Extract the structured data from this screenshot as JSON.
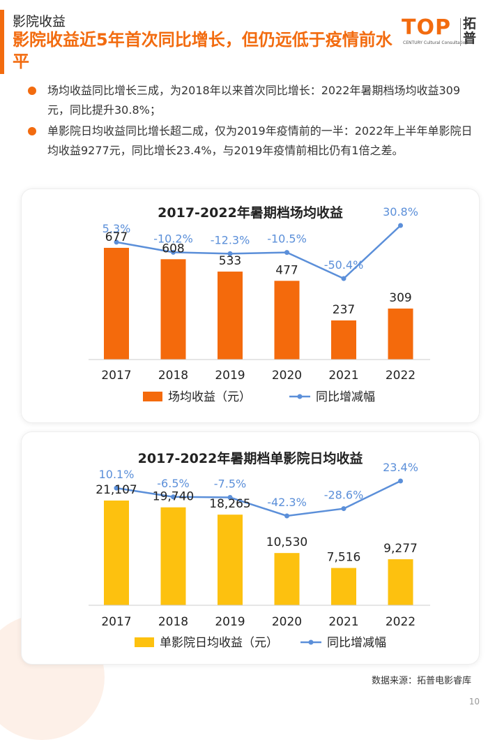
{
  "header": {
    "section_label": "影院收益",
    "headline": "影院收益近5年首次同比增长，但仍远低于疫情前水平"
  },
  "logo": {
    "text": "TOP",
    "sub": "CENTURY Cultural Consultation",
    "cn": "拓普"
  },
  "bullets": [
    {
      "bold": "场均收益同比增长三成，为2018年以来首次同比增长：",
      "text": "2022年暑期档场均收益309元，同比提升30.8%；"
    },
    {
      "bold": "单影院日均收益同比增长超二成，仅为2019年疫情前的一半：",
      "text": "2022年上半年单影院日均收益9277元，同比增长23.4%，与2019年疫情前相比仍有1倍之差。"
    }
  ],
  "colors": {
    "accent": "#f26b0f",
    "bar1": "#f46a0c",
    "bar2": "#fdc10f",
    "line": "#5b8fd9"
  },
  "chart_data": [
    {
      "type": "bar",
      "title": "2017-2022年暑期档场均收益",
      "categories": [
        "2017",
        "2018",
        "2019",
        "2020",
        "2021",
        "2022"
      ],
      "series": [
        {
          "name": "场均收益（元）",
          "values": [
            677,
            608,
            533,
            477,
            237,
            309
          ],
          "labels": [
            "677",
            "608",
            "533",
            "477",
            "237",
            "309"
          ]
        },
        {
          "name": "同比增减幅",
          "type": "line",
          "values": [
            5.3,
            -10.2,
            -12.3,
            -10.5,
            -50.4,
            30.8
          ],
          "labels": [
            "5.3%",
            "-10.2%",
            "-12.3%",
            "-10.5%",
            "-50.4%",
            "30.8%"
          ]
        }
      ],
      "legend": "bottom"
    },
    {
      "type": "bar",
      "title": "2017-2022年暑期档单影院日均收益",
      "categories": [
        "2017",
        "2018",
        "2019",
        "2020",
        "2021",
        "2022"
      ],
      "series": [
        {
          "name": "单影院日均收益（元）",
          "values": [
            21107,
            19740,
            18265,
            10530,
            7516,
            9277
          ],
          "labels": [
            "21,107",
            "19,740",
            "18,265",
            "10,530",
            "7,516",
            "9,277"
          ]
        },
        {
          "name": "同比增减幅",
          "type": "line",
          "values": [
            10.1,
            -6.5,
            -7.5,
            -42.3,
            -28.6,
            23.4
          ],
          "labels": [
            "10.1%",
            "-6.5%",
            "-7.5%",
            "-42.3%",
            "-28.6%",
            "23.4%"
          ]
        }
      ],
      "legend": "bottom"
    }
  ],
  "footer": {
    "source": "数据来源：拓普电影睿库",
    "page": "10"
  }
}
